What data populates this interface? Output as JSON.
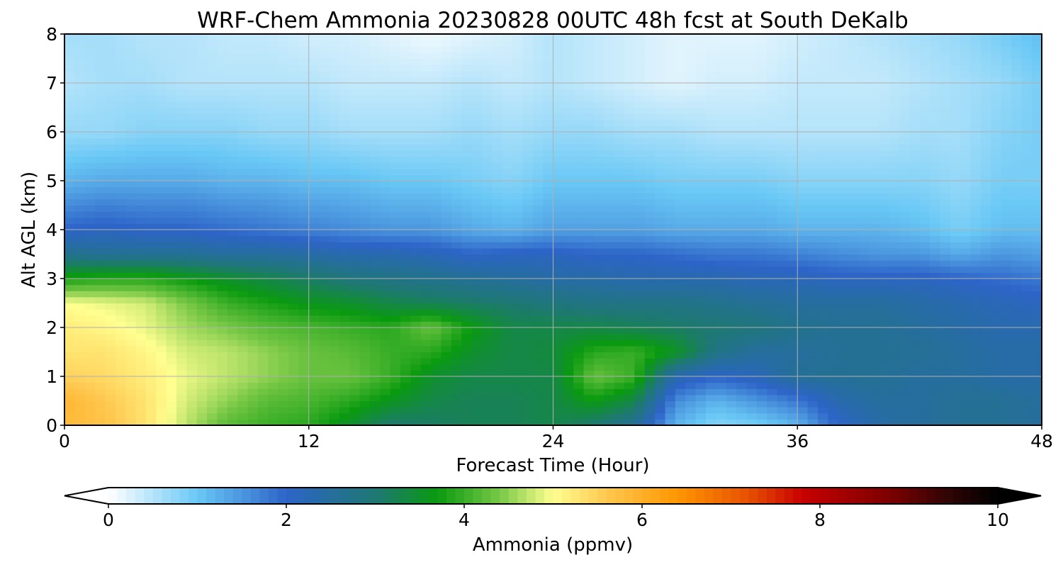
{
  "chart_data": {
    "type": "heatmap",
    "title": "WRF-Chem Ammonia  20230828 00UTC 48h fcst at South DeKalb",
    "xlabel": "Forecast Time (Hour)",
    "ylabel": "Alt AGL (km)",
    "xlim": [
      0,
      48
    ],
    "ylim": [
      0,
      8
    ],
    "xticks": [
      0,
      12,
      24,
      36,
      48
    ],
    "yticks": [
      0,
      1,
      2,
      3,
      4,
      5,
      6,
      7,
      8
    ],
    "grid": true,
    "x": [
      0,
      2,
      4,
      6,
      8,
      10,
      12,
      14,
      16,
      18,
      20,
      22,
      24,
      26,
      28,
      30,
      32,
      34,
      36,
      38,
      40,
      42,
      44,
      46,
      48
    ],
    "y": [
      0,
      0.5,
      1,
      1.5,
      2,
      2.5,
      3,
      3.5,
      4,
      5,
      6,
      7,
      8
    ],
    "z": [
      [
        5.8,
        5.7,
        5.3,
        4.7,
        4.2,
        4.0,
        3.9,
        3.5,
        3.0,
        3.1,
        3.2,
        3.2,
        3.3,
        3.0,
        2.6,
        1.2,
        0.8,
        0.9,
        1.2,
        2.0,
        2.4,
        2.5,
        2.6,
        2.6,
        2.5
      ],
      [
        5.9,
        5.6,
        5.3,
        4.8,
        4.5,
        4.2,
        4.1,
        3.9,
        3.6,
        3.3,
        3.2,
        3.2,
        3.3,
        3.7,
        3.3,
        1.6,
        1.2,
        1.5,
        1.8,
        2.3,
        2.5,
        2.5,
        2.6,
        2.6,
        2.5
      ],
      [
        5.5,
        5.4,
        5.2,
        4.9,
        4.7,
        4.5,
        4.3,
        4.3,
        4.0,
        3.5,
        3.3,
        3.3,
        3.3,
        4.3,
        4.0,
        2.3,
        2.0,
        2.2,
        2.6,
        2.6,
        2.6,
        2.5,
        2.5,
        2.4,
        2.4
      ],
      [
        5.3,
        5.3,
        5.1,
        4.8,
        4.7,
        4.5,
        4.3,
        4.2,
        4.0,
        3.9,
        3.5,
        3.3,
        3.4,
        3.9,
        4.0,
        3.6,
        2.8,
        2.5,
        2.5,
        2.6,
        2.6,
        2.6,
        2.5,
        2.4,
        2.4
      ],
      [
        5.2,
        5.1,
        4.9,
        4.6,
        4.4,
        4.2,
        4.1,
        4.0,
        3.9,
        4.3,
        3.7,
        3.3,
        3.3,
        3.3,
        3.2,
        3.1,
        3.0,
        2.9,
        2.7,
        2.6,
        2.6,
        2.5,
        2.4,
        2.3,
        2.3
      ],
      [
        5.0,
        4.9,
        4.8,
        4.4,
        4.0,
        3.8,
        3.6,
        3.5,
        3.3,
        3.2,
        3.1,
        3.0,
        2.9,
        2.8,
        2.8,
        2.8,
        2.7,
        2.6,
        2.5,
        2.5,
        2.5,
        2.4,
        2.3,
        2.2,
        2.1
      ],
      [
        3.8,
        3.9,
        3.9,
        3.7,
        3.5,
        3.3,
        3.1,
        2.9,
        2.8,
        2.7,
        2.6,
        2.5,
        2.4,
        2.4,
        2.3,
        2.3,
        2.3,
        2.2,
        2.2,
        2.1,
        2.1,
        2.1,
        2.0,
        1.9,
        1.8
      ],
      [
        2.7,
        2.6,
        2.6,
        2.6,
        2.5,
        2.5,
        2.4,
        2.3,
        2.3,
        2.2,
        2.0,
        2.1,
        2.1,
        2.0,
        2.0,
        1.9,
        1.8,
        1.8,
        1.7,
        1.6,
        1.5,
        1.5,
        1.3,
        1.5,
        1.4
      ],
      [
        2.0,
        2.1,
        2.0,
        2.0,
        1.9,
        1.8,
        1.7,
        1.6,
        1.5,
        1.5,
        1.3,
        1.2,
        1.4,
        1.4,
        1.4,
        1.3,
        1.3,
        1.3,
        1.2,
        1.2,
        1.2,
        1.1,
        0.9,
        1.1,
        1.1
      ],
      [
        1.2,
        1.3,
        1.3,
        1.3,
        1.2,
        1.2,
        1.1,
        1.1,
        1.0,
        1.0,
        0.9,
        0.8,
        1.0,
        1.0,
        1.0,
        0.9,
        0.9,
        0.9,
        0.8,
        0.8,
        0.8,
        0.8,
        0.7,
        0.9,
        0.9
      ],
      [
        0.7,
        0.7,
        0.8,
        0.8,
        0.8,
        0.7,
        0.7,
        0.6,
        0.6,
        0.6,
        0.7,
        0.6,
        0.7,
        0.7,
        0.6,
        0.6,
        0.5,
        0.5,
        0.5,
        0.5,
        0.5,
        0.6,
        0.6,
        0.8,
        0.9
      ],
      [
        0.5,
        0.6,
        0.6,
        0.5,
        0.5,
        0.5,
        0.5,
        0.4,
        0.4,
        0.4,
        0.5,
        0.4,
        0.5,
        0.4,
        0.3,
        0.2,
        0.3,
        0.3,
        0.4,
        0.4,
        0.4,
        0.5,
        0.6,
        0.7,
        0.9
      ],
      [
        0.6,
        0.6,
        0.5,
        0.5,
        0.4,
        0.4,
        0.3,
        0.3,
        0.2,
        0.1,
        0.2,
        0.3,
        0.5,
        0.4,
        0.3,
        0.2,
        0.2,
        0.2,
        0.3,
        0.4,
        0.5,
        0.6,
        0.7,
        0.9,
        1.1
      ]
    ],
    "colorbar": {
      "label": "Ammonia  (ppmv)",
      "range": [
        0,
        10
      ],
      "ticks": [
        0,
        2,
        4,
        6,
        8,
        10
      ],
      "extend": "both",
      "placement": "bottom",
      "colormap": [
        [
          0,
          "#ffffff"
        ],
        [
          1,
          "#69c8f5"
        ],
        [
          2,
          "#2d64c8"
        ],
        [
          3,
          "#1e7873"
        ],
        [
          3.7,
          "#0a9a10"
        ],
        [
          4.4,
          "#78c846"
        ],
        [
          5,
          "#ffff90"
        ],
        [
          5.6,
          "#ffc850"
        ],
        [
          6.4,
          "#ff9600"
        ],
        [
          7.2,
          "#e65000"
        ],
        [
          7.8,
          "#c80000"
        ],
        [
          8.8,
          "#7a0000"
        ],
        [
          9.5,
          "#2a0505"
        ],
        [
          10,
          "#000000"
        ]
      ]
    }
  }
}
